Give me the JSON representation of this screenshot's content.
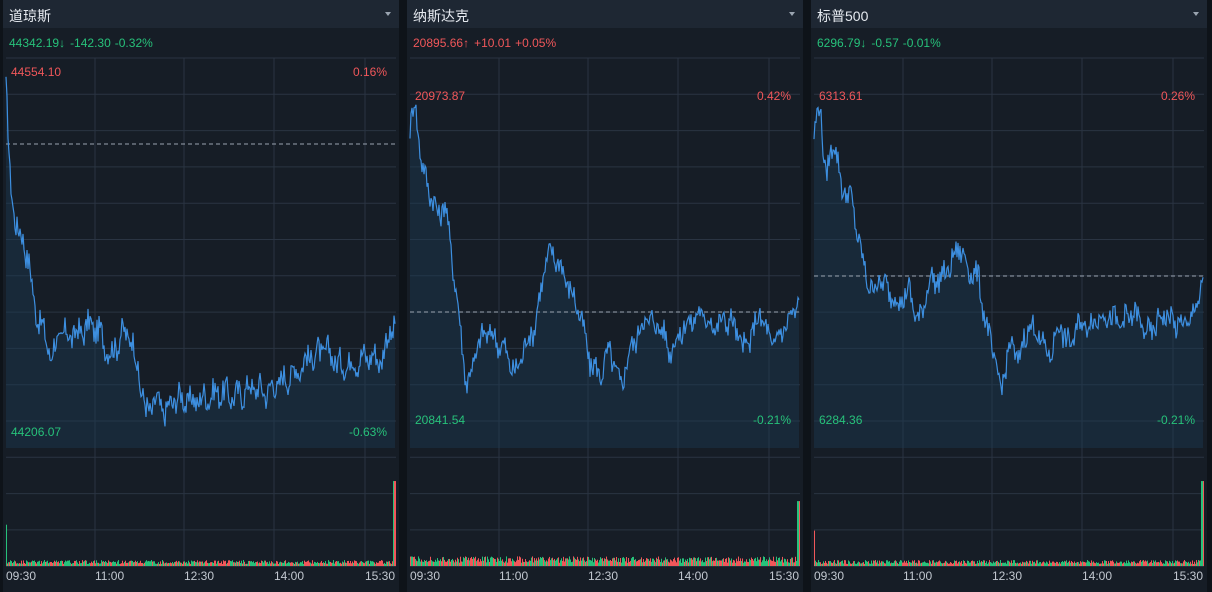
{
  "colors": {
    "up": "#f0575a",
    "down": "#27c17a",
    "line": "#3d8fe0",
    "grid": "#2a3442",
    "bg": "#161d26"
  },
  "panels": [
    {
      "title": "道琼斯",
      "quote": {
        "price": "44342.19",
        "arrow": "↓",
        "change": "-142.30",
        "percent": "-0.32%",
        "direction": "down"
      },
      "high": {
        "value": "44554.10",
        "percent": "0.16%"
      },
      "low": {
        "value": "44206.07",
        "percent": "-0.63%"
      },
      "times": [
        "09:30",
        "11:00",
        "12:30",
        "14:00",
        "15:30"
      ],
      "chart_data": {
        "type": "line",
        "prev_close": 44484.49,
        "ylim": [
          44206.07,
          44554.1
        ],
        "x_range": [
          "09:30",
          "16:00"
        ],
        "grid": true,
        "anchors": [
          [
            0,
            44540
          ],
          [
            4,
            44450
          ],
          [
            8,
            44420
          ],
          [
            12,
            44400
          ],
          [
            18,
            44390
          ],
          [
            23,
            44370
          ],
          [
            28,
            44330
          ],
          [
            35,
            44310
          ],
          [
            45,
            44280
          ],
          [
            55,
            44300
          ],
          [
            70,
            44300
          ],
          [
            85,
            44310
          ],
          [
            95,
            44300
          ],
          [
            105,
            44280
          ],
          [
            115,
            44300
          ],
          [
            125,
            44300
          ],
          [
            135,
            44250
          ],
          [
            140,
            44225
          ],
          [
            150,
            44235
          ],
          [
            160,
            44225
          ],
          [
            170,
            44240
          ],
          [
            185,
            44235
          ],
          [
            200,
            44240
          ],
          [
            215,
            44245
          ],
          [
            230,
            44240
          ],
          [
            245,
            44250
          ],
          [
            260,
            44245
          ],
          [
            275,
            44255
          ],
          [
            290,
            44265
          ],
          [
            305,
            44280
          ],
          [
            320,
            44285
          ],
          [
            335,
            44270
          ],
          [
            350,
            44275
          ],
          [
            365,
            44280
          ],
          [
            375,
            44275
          ],
          [
            383,
            44300
          ],
          [
            389,
            44310
          ]
        ],
        "volume_end_spike": 0.72,
        "volume_start_spike": 0.35
      }
    },
    {
      "title": "纳斯达克",
      "quote": {
        "price": "20895.66",
        "arrow": "↑",
        "change": "+10.01",
        "percent": "+0.05%",
        "direction": "up"
      },
      "high": {
        "value": "20973.87",
        "percent": "0.42%"
      },
      "low": {
        "value": "20841.54",
        "percent": "-0.21%"
      },
      "times": [
        "09:30",
        "11:00",
        "12:30",
        "14:00",
        "15:30"
      ],
      "chart_data": {
        "type": "line",
        "prev_close": 20885.65,
        "ylim": [
          20841.54,
          20973.87
        ],
        "x_range": [
          "09:30",
          "16:00"
        ],
        "grid": true,
        "anchors": [
          [
            0,
            20960
          ],
          [
            5,
            20972
          ],
          [
            12,
            20945
          ],
          [
            20,
            20935
          ],
          [
            28,
            20925
          ],
          [
            35,
            20930
          ],
          [
            43,
            20905
          ],
          [
            50,
            20880
          ],
          [
            57,
            20855
          ],
          [
            65,
            20868
          ],
          [
            75,
            20878
          ],
          [
            85,
            20875
          ],
          [
            95,
            20870
          ],
          [
            105,
            20860
          ],
          [
            115,
            20872
          ],
          [
            125,
            20880
          ],
          [
            135,
            20905
          ],
          [
            142,
            20910
          ],
          [
            150,
            20905
          ],
          [
            160,
            20895
          ],
          [
            170,
            20885
          ],
          [
            180,
            20865
          ],
          [
            190,
            20860
          ],
          [
            200,
            20870
          ],
          [
            210,
            20855
          ],
          [
            220,
            20870
          ],
          [
            235,
            20883
          ],
          [
            250,
            20880
          ],
          [
            260,
            20870
          ],
          [
            275,
            20880
          ],
          [
            290,
            20885
          ],
          [
            305,
            20880
          ],
          [
            320,
            20883
          ],
          [
            335,
            20870
          ],
          [
            350,
            20885
          ],
          [
            362,
            20872
          ],
          [
            375,
            20880
          ],
          [
            383,
            20885
          ],
          [
            389,
            20890
          ]
        ],
        "volume_end_spike": 0.55,
        "volume_start_spike": 0.08
      }
    },
    {
      "title": "标普500",
      "quote": {
        "price": "6296.79",
        "arrow": "↓",
        "change": "-0.57",
        "percent": "-0.01%",
        "direction": "down"
      },
      "high": {
        "value": "6313.61",
        "percent": "0.26%"
      },
      "low": {
        "value": "6284.36",
        "percent": "-0.21%"
      },
      "times": [
        "09:30",
        "11:00",
        "12:30",
        "14:00",
        "15:30"
      ],
      "chart_data": {
        "type": "line",
        "prev_close": 6297.36,
        "ylim": [
          6284.36,
          6313.61
        ],
        "x_range": [
          "09:30",
          "16:00"
        ],
        "grid": true,
        "anchors": [
          [
            0,
            6310
          ],
          [
            6,
            6313
          ],
          [
            12,
            6306
          ],
          [
            20,
            6310
          ],
          [
            28,
            6305
          ],
          [
            35,
            6305
          ],
          [
            42,
            6302
          ],
          [
            50,
            6298
          ],
          [
            58,
            6296
          ],
          [
            65,
            6297
          ],
          [
            75,
            6296
          ],
          [
            85,
            6295
          ],
          [
            95,
            6296
          ],
          [
            105,
            6293
          ],
          [
            115,
            6297
          ],
          [
            125,
            6297
          ],
          [
            135,
            6298
          ],
          [
            145,
            6300
          ],
          [
            155,
            6298
          ],
          [
            165,
            6297
          ],
          [
            172,
            6293
          ],
          [
            180,
            6290
          ],
          [
            187,
            6287
          ],
          [
            195,
            6291
          ],
          [
            205,
            6290
          ],
          [
            215,
            6293
          ],
          [
            225,
            6292
          ],
          [
            235,
            6290
          ],
          [
            245,
            6293
          ],
          [
            255,
            6291
          ],
          [
            265,
            6293
          ],
          [
            275,
            6293
          ],
          [
            290,
            6294
          ],
          [
            305,
            6293
          ],
          [
            320,
            6294
          ],
          [
            335,
            6292
          ],
          [
            350,
            6294
          ],
          [
            362,
            6293
          ],
          [
            375,
            6293
          ],
          [
            383,
            6295
          ],
          [
            389,
            6297
          ]
        ],
        "volume_end_spike": 0.72,
        "volume_start_spike": 0.3
      }
    }
  ]
}
